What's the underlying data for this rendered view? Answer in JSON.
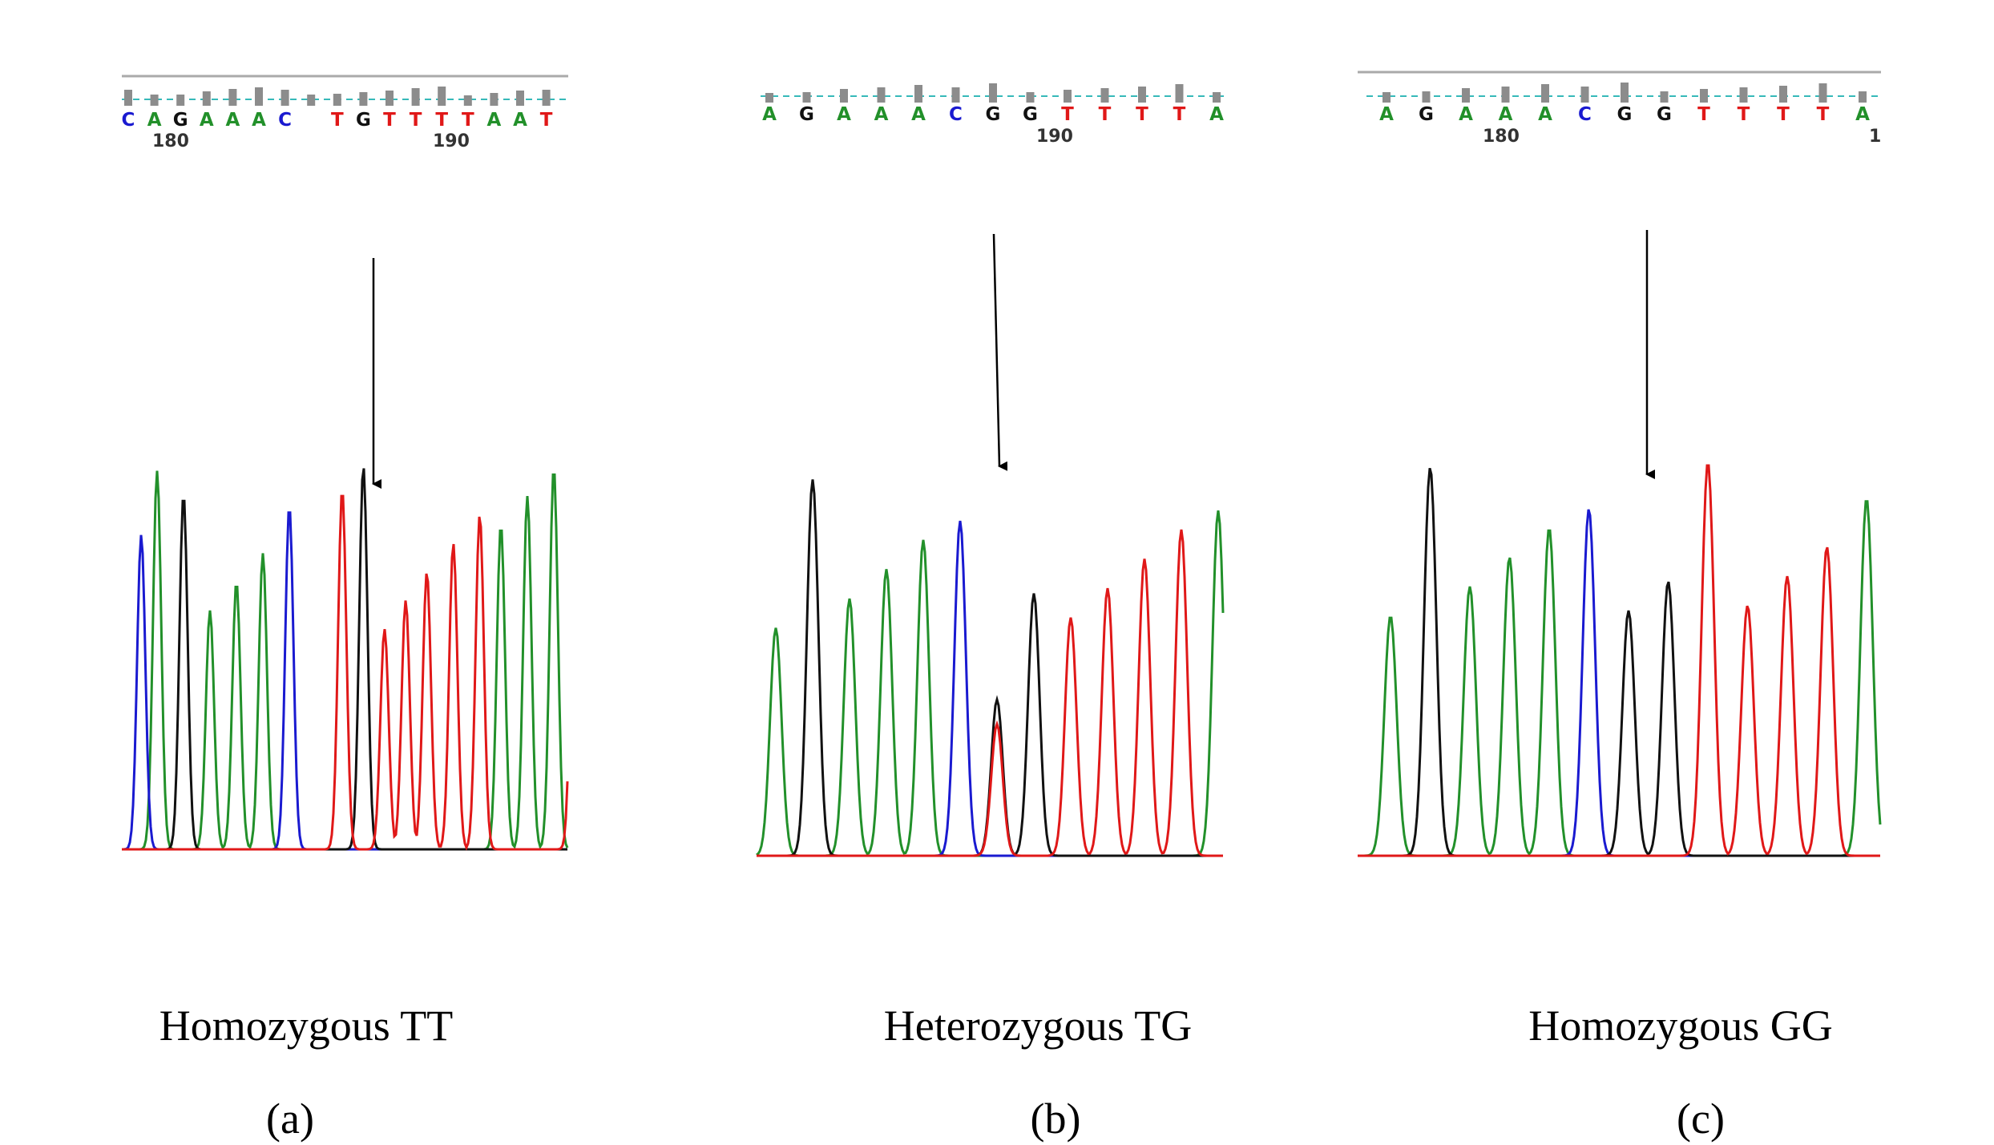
{
  "colors": {
    "A": "#22902a",
    "C": "#1a1ad0",
    "G": "#111111",
    "T": "#e01818",
    "qv_bar": "#8c8c8c",
    "qv_line": "#36b9b9",
    "ruler": "#aaaaaa"
  },
  "panels": [
    {
      "id": "a",
      "genotype": "Homozygous TT",
      "label": "(a)",
      "bases": [
        "C",
        "A",
        "G",
        "A",
        "A",
        "A",
        "C",
        "",
        "T",
        "G",
        "T",
        "T",
        "T",
        "T",
        "A",
        "A",
        "T"
      ],
      "positions": [
        "180",
        "190"
      ],
      "partial_first_letter": true,
      "peaks": {
        "A": [
          1,
          3,
          4,
          5,
          14,
          15,
          16
        ],
        "C": [
          0.4,
          6
        ],
        "G": [
          2,
          8.8
        ],
        "T": [
          8,
          9.6,
          10.4,
          11.2,
          12.2,
          13.2,
          16.8
        ]
      }
    },
    {
      "id": "b",
      "genotype": "Heterozygous TG",
      "label": "(b)",
      "bases": [
        "A",
        "G",
        "A",
        "A",
        "A",
        "C",
        "G",
        "G",
        "T",
        "T",
        "T",
        "T",
        "A"
      ],
      "positions": [
        "190"
      ],
      "peaks": {
        "A": [
          0,
          2,
          3,
          4,
          12
        ],
        "C": [
          5
        ],
        "G": [
          1,
          6,
          7
        ],
        "T": [
          6,
          8,
          9,
          10,
          11
        ]
      }
    },
    {
      "id": "c",
      "genotype": "Homozygous GG",
      "label": "(c)",
      "bases": [
        "A",
        "G",
        "A",
        "A",
        "A",
        "C",
        "G",
        "G",
        "T",
        "T",
        "T",
        "T",
        "A"
      ],
      "positions": [
        "180",
        "1"
      ],
      "peaks": {
        "A": [
          0,
          2,
          3,
          4,
          12
        ],
        "C": [
          5
        ],
        "G": [
          1,
          6,
          7
        ],
        "T": [
          8,
          9,
          10,
          11
        ]
      }
    }
  ]
}
